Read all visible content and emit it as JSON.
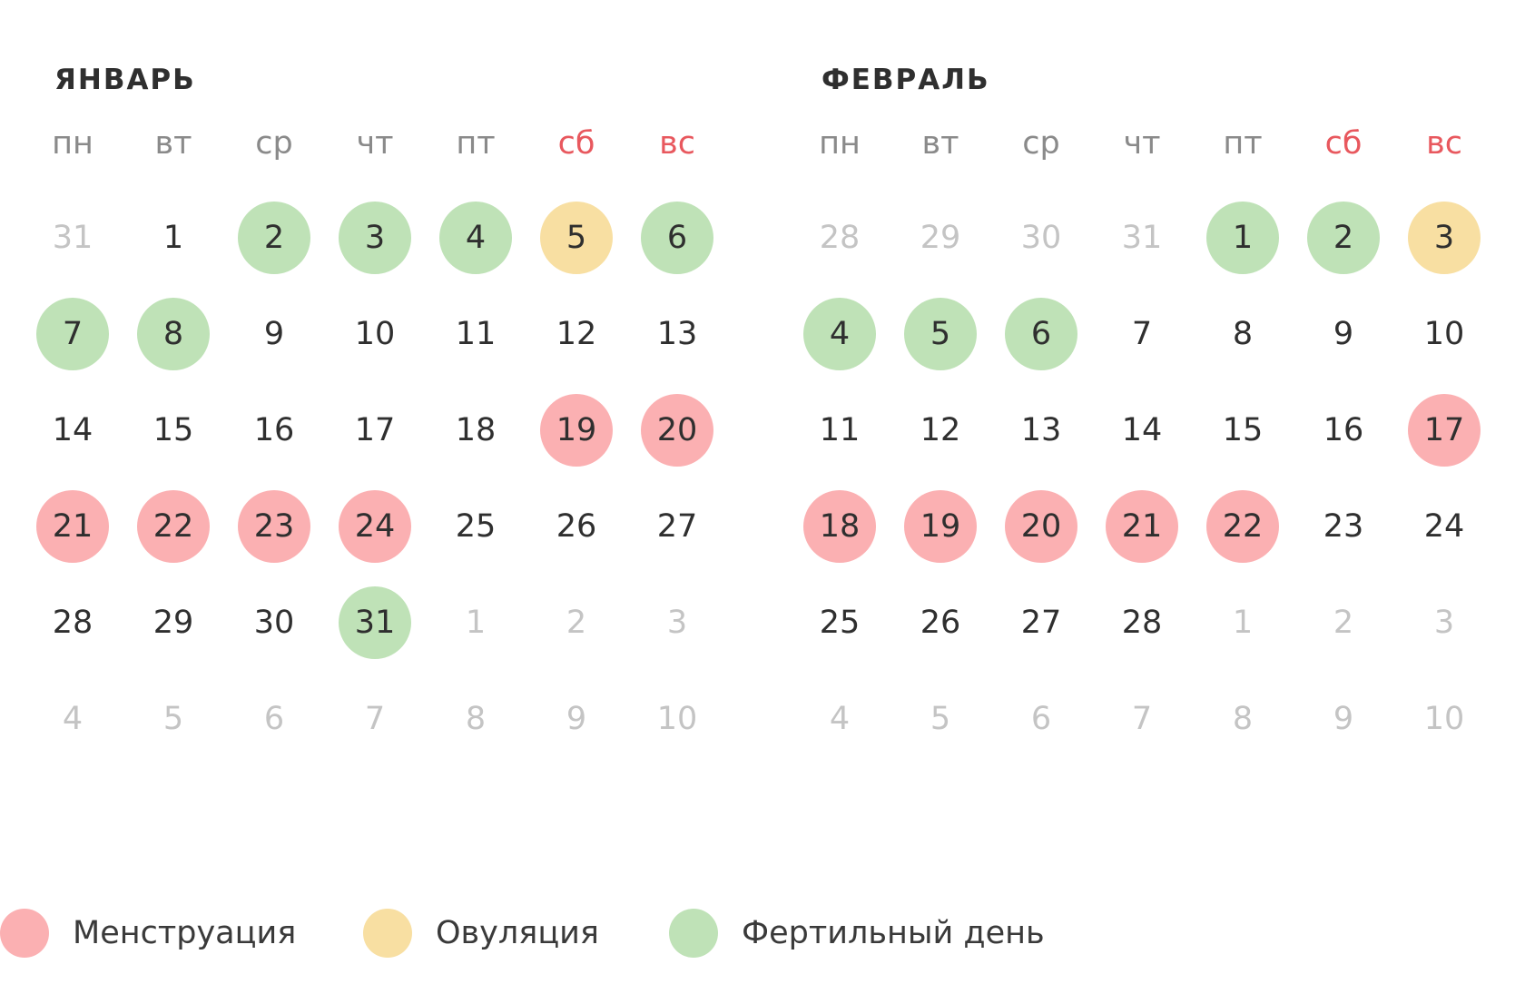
{
  "weekdays": [
    {
      "label": "пн",
      "weekend": false
    },
    {
      "label": "вт",
      "weekend": false
    },
    {
      "label": "ср",
      "weekend": false
    },
    {
      "label": "чт",
      "weekend": false
    },
    {
      "label": "пт",
      "weekend": false
    },
    {
      "label": "сб",
      "weekend": true
    },
    {
      "label": "вс",
      "weekend": true
    }
  ],
  "colors": {
    "menstruation": "#fbb0b2",
    "ovulation": "#f8dfa2",
    "fertile": "#bfe2b7",
    "weekend_text": "#e8585e"
  },
  "months": [
    {
      "title": "ЯНВАРЬ",
      "weeks": [
        [
          {
            "d": "31",
            "out": true
          },
          {
            "d": "1"
          },
          {
            "d": "2",
            "mark": "fertile"
          },
          {
            "d": "3",
            "mark": "fertile"
          },
          {
            "d": "4",
            "mark": "fertile"
          },
          {
            "d": "5",
            "mark": "ovulation"
          },
          {
            "d": "6",
            "mark": "fertile"
          }
        ],
        [
          {
            "d": "7",
            "mark": "fertile"
          },
          {
            "d": "8",
            "mark": "fertile"
          },
          {
            "d": "9"
          },
          {
            "d": "10"
          },
          {
            "d": "11"
          },
          {
            "d": "12"
          },
          {
            "d": "13"
          }
        ],
        [
          {
            "d": "14"
          },
          {
            "d": "15"
          },
          {
            "d": "16"
          },
          {
            "d": "17"
          },
          {
            "d": "18"
          },
          {
            "d": "19",
            "mark": "menstruation"
          },
          {
            "d": "20",
            "mark": "menstruation"
          }
        ],
        [
          {
            "d": "21",
            "mark": "menstruation"
          },
          {
            "d": "22",
            "mark": "menstruation"
          },
          {
            "d": "23",
            "mark": "menstruation"
          },
          {
            "d": "24",
            "mark": "menstruation"
          },
          {
            "d": "25"
          },
          {
            "d": "26"
          },
          {
            "d": "27"
          }
        ],
        [
          {
            "d": "28"
          },
          {
            "d": "29"
          },
          {
            "d": "30"
          },
          {
            "d": "31",
            "mark": "fertile"
          },
          {
            "d": "1",
            "out": true
          },
          {
            "d": "2",
            "out": true
          },
          {
            "d": "3",
            "out": true
          }
        ],
        [
          {
            "d": "4",
            "out": true
          },
          {
            "d": "5",
            "out": true
          },
          {
            "d": "6",
            "out": true
          },
          {
            "d": "7",
            "out": true
          },
          {
            "d": "8",
            "out": true
          },
          {
            "d": "9",
            "out": true
          },
          {
            "d": "10",
            "out": true
          }
        ]
      ]
    },
    {
      "title": "ФЕВРАЛЬ",
      "weeks": [
        [
          {
            "d": "28",
            "out": true
          },
          {
            "d": "29",
            "out": true
          },
          {
            "d": "30",
            "out": true
          },
          {
            "d": "31",
            "out": true
          },
          {
            "d": "1",
            "mark": "fertile"
          },
          {
            "d": "2",
            "mark": "fertile"
          },
          {
            "d": "3",
            "mark": "ovulation"
          }
        ],
        [
          {
            "d": "4",
            "mark": "fertile"
          },
          {
            "d": "5",
            "mark": "fertile"
          },
          {
            "d": "6",
            "mark": "fertile"
          },
          {
            "d": "7"
          },
          {
            "d": "8"
          },
          {
            "d": "9"
          },
          {
            "d": "10"
          }
        ],
        [
          {
            "d": "11"
          },
          {
            "d": "12"
          },
          {
            "d": "13"
          },
          {
            "d": "14"
          },
          {
            "d": "15"
          },
          {
            "d": "16"
          },
          {
            "d": "17",
            "mark": "menstruation"
          }
        ],
        [
          {
            "d": "18",
            "mark": "menstruation"
          },
          {
            "d": "19",
            "mark": "menstruation"
          },
          {
            "d": "20",
            "mark": "menstruation"
          },
          {
            "d": "21",
            "mark": "menstruation"
          },
          {
            "d": "22",
            "mark": "menstruation"
          },
          {
            "d": "23"
          },
          {
            "d": "24"
          }
        ],
        [
          {
            "d": "25"
          },
          {
            "d": "26"
          },
          {
            "d": "27"
          },
          {
            "d": "28"
          },
          {
            "d": "1",
            "out": true
          },
          {
            "d": "2",
            "out": true
          },
          {
            "d": "3",
            "out": true
          }
        ],
        [
          {
            "d": "4",
            "out": true
          },
          {
            "d": "5",
            "out": true
          },
          {
            "d": "6",
            "out": true
          },
          {
            "d": "7",
            "out": true
          },
          {
            "d": "8",
            "out": true
          },
          {
            "d": "9",
            "out": true
          },
          {
            "d": "10",
            "out": true
          }
        ]
      ]
    }
  ],
  "legend": [
    {
      "key": "menstruation",
      "label": "Менструация"
    },
    {
      "key": "ovulation",
      "label": "Овуляция"
    },
    {
      "key": "fertile",
      "label": "Фертильный день"
    }
  ]
}
